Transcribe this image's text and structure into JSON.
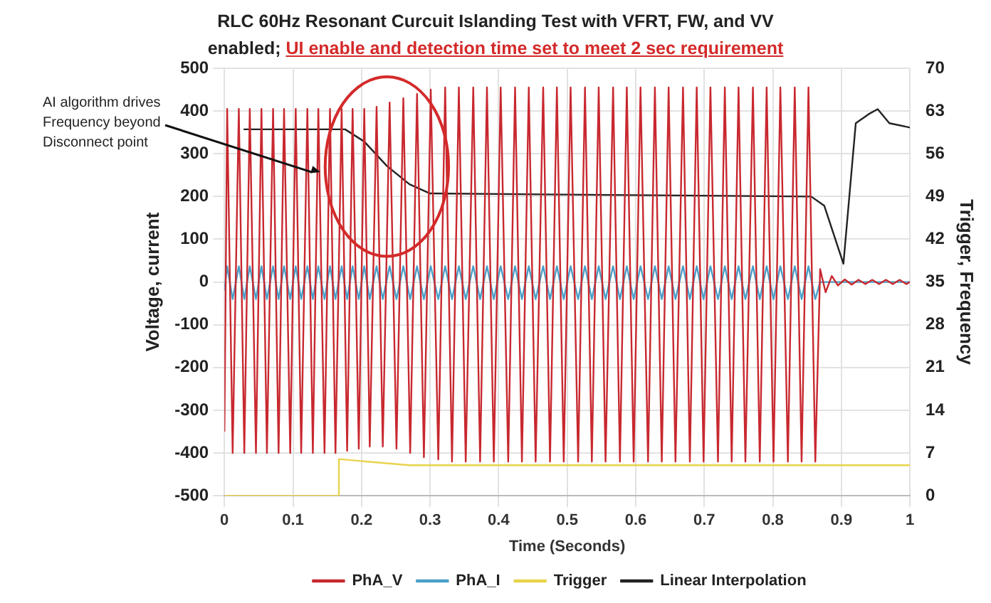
{
  "chart_data": {
    "type": "line",
    "title": "RLC 60Hz Resonant Curcuit Islanding Test with VFRT, FW, and VV enabled;",
    "subtitle": "UI enable and detection time set to meet 2 sec requirement",
    "xlabel": "Time (Seconds)",
    "ylabel": "Voltage, current",
    "y2label": "Trigger, Frequency",
    "xlim": [
      0,
      1
    ],
    "xticks": [
      0,
      0.1,
      0.2,
      0.3,
      0.4,
      0.5,
      0.6,
      0.7,
      0.8,
      0.9,
      1
    ],
    "ylim": [
      -500,
      500
    ],
    "yticks": [
      -500,
      -400,
      -300,
      -200,
      -100,
      0,
      100,
      200,
      300,
      400,
      500
    ],
    "y2lim": [
      0,
      70
    ],
    "y2ticks": [
      0,
      7,
      14,
      21,
      28,
      35,
      42,
      49,
      56,
      63,
      70
    ],
    "grid": true,
    "legend": "bottom",
    "marker": "none",
    "annotations": [
      {
        "text": "AI algorithm drives Frequency beyond Disconnect point",
        "x": 0.14,
        "y": 257
      }
    ],
    "series": [
      {
        "name": "PhA_V",
        "color": "#c8282f",
        "x": [
          0,
          0.004,
          0.012,
          0.021,
          0.029,
          0.037,
          0.046,
          0.054,
          0.062,
          0.071,
          0.079,
          0.087,
          0.096,
          0.104,
          0.112,
          0.121,
          0.129,
          0.137,
          0.146,
          0.154,
          0.162,
          0.171,
          0.179,
          0.187,
          0.196,
          0.204,
          0.212,
          0.222,
          0.231,
          0.241,
          0.251,
          0.261,
          0.271,
          0.281,
          0.291,
          0.301,
          0.312,
          0.322,
          0.332,
          0.342,
          0.352,
          0.363,
          0.373,
          0.383,
          0.393,
          0.403,
          0.414,
          0.424,
          0.434,
          0.444,
          0.454,
          0.465,
          0.475,
          0.485,
          0.495,
          0.505,
          0.516,
          0.526,
          0.536,
          0.546,
          0.556,
          0.567,
          0.577,
          0.587,
          0.597,
          0.607,
          0.618,
          0.628,
          0.638,
          0.648,
          0.658,
          0.669,
          0.679,
          0.689,
          0.699,
          0.709,
          0.72,
          0.73,
          0.74,
          0.75,
          0.76,
          0.771,
          0.781,
          0.791,
          0.801,
          0.811,
          0.822,
          0.832,
          0.842,
          0.852,
          0.862,
          0.869,
          0.877,
          0.886,
          0.895,
          0.905,
          0.915,
          0.925,
          0.935,
          0.945,
          0.955,
          0.965,
          0.975,
          0.985,
          0.995,
          1
        ],
        "values": [
          -350,
          405,
          -400,
          405,
          -400,
          405,
          -400,
          405,
          -400,
          405,
          -400,
          405,
          -400,
          405,
          -400,
          405,
          -400,
          405,
          -400,
          405,
          -400,
          405,
          -395,
          405,
          -390,
          405,
          -385,
          410,
          -385,
          420,
          -390,
          430,
          -400,
          440,
          -410,
          450,
          -415,
          455,
          -420,
          455,
          -420,
          455,
          -420,
          455,
          -420,
          455,
          -420,
          455,
          -420,
          455,
          -420,
          455,
          -420,
          455,
          -420,
          455,
          -420,
          455,
          -420,
          455,
          -420,
          455,
          -420,
          455,
          -420,
          455,
          -420,
          455,
          -420,
          455,
          -420,
          455,
          -420,
          455,
          -420,
          455,
          -420,
          455,
          -420,
          455,
          -420,
          455,
          -420,
          455,
          -420,
          455,
          -420,
          455,
          -420,
          455,
          -420,
          30,
          -24,
          14,
          -8,
          6,
          -6,
          5,
          -5,
          5,
          -5,
          5,
          -5,
          5,
          -5,
          0
        ]
      },
      {
        "name": "PhA_I",
        "color": "#4a9fc8",
        "x": [
          0,
          0.004,
          0.012,
          0.021,
          0.029,
          0.037,
          0.046,
          0.054,
          0.062,
          0.071,
          0.079,
          0.087,
          0.096,
          0.104,
          0.112,
          0.121,
          0.129,
          0.137,
          0.146,
          0.154,
          0.162,
          0.171,
          0.179,
          0.187,
          0.196,
          0.204,
          0.212,
          0.222,
          0.231,
          0.241,
          0.251,
          0.261,
          0.271,
          0.281,
          0.291,
          0.301,
          0.312,
          0.322,
          0.332,
          0.342,
          0.352,
          0.363,
          0.373,
          0.383,
          0.393,
          0.403,
          0.414,
          0.424,
          0.434,
          0.444,
          0.454,
          0.465,
          0.475,
          0.485,
          0.495,
          0.505,
          0.516,
          0.526,
          0.536,
          0.546,
          0.556,
          0.567,
          0.577,
          0.587,
          0.597,
          0.607,
          0.618,
          0.628,
          0.638,
          0.648,
          0.658,
          0.669,
          0.679,
          0.689,
          0.699,
          0.709,
          0.72,
          0.73,
          0.74,
          0.75,
          0.76,
          0.771,
          0.781,
          0.791,
          0.801,
          0.811,
          0.822,
          0.832,
          0.842,
          0.852,
          0.862,
          0.869,
          1
        ],
        "values": [
          -20,
          37,
          -40,
          37,
          -40,
          37,
          -40,
          37,
          -40,
          37,
          -40,
          37,
          -40,
          37,
          -40,
          37,
          -40,
          37,
          -40,
          37,
          -40,
          37,
          -40,
          37,
          -40,
          37,
          -40,
          37,
          -40,
          37,
          -40,
          37,
          -40,
          37,
          -40,
          37,
          -40,
          37,
          -40,
          37,
          -40,
          37,
          -40,
          37,
          -40,
          37,
          -40,
          37,
          -40,
          37,
          -40,
          37,
          -40,
          37,
          -40,
          37,
          -40,
          37,
          -40,
          37,
          -40,
          37,
          -40,
          37,
          -40,
          37,
          -40,
          37,
          -40,
          37,
          -40,
          37,
          -40,
          37,
          -40,
          37,
          -40,
          37,
          -40,
          37,
          -40,
          37,
          -40,
          37,
          -40,
          37,
          -40,
          37,
          -40,
          37,
          -40,
          0,
          0
        ]
      },
      {
        "name": "Trigger",
        "color": "#e8d44d",
        "axis": "y2",
        "x": [
          0,
          0.167,
          0.167,
          0.27,
          1
        ],
        "values": [
          0,
          0,
          6,
          5,
          5
        ]
      },
      {
        "name": "Linear Interpolation",
        "color": "#222222",
        "axis": "y2",
        "x": [
          0.028,
          0.176,
          0.204,
          0.237,
          0.27,
          0.3,
          0.856,
          0.875,
          0.903,
          0.921,
          0.94,
          0.953,
          0.97,
          1
        ],
        "values": [
          60,
          60,
          58,
          54,
          51,
          49.5,
          49,
          47.5,
          38,
          61,
          62.5,
          63.3,
          61,
          60.3
        ]
      }
    ]
  }
}
